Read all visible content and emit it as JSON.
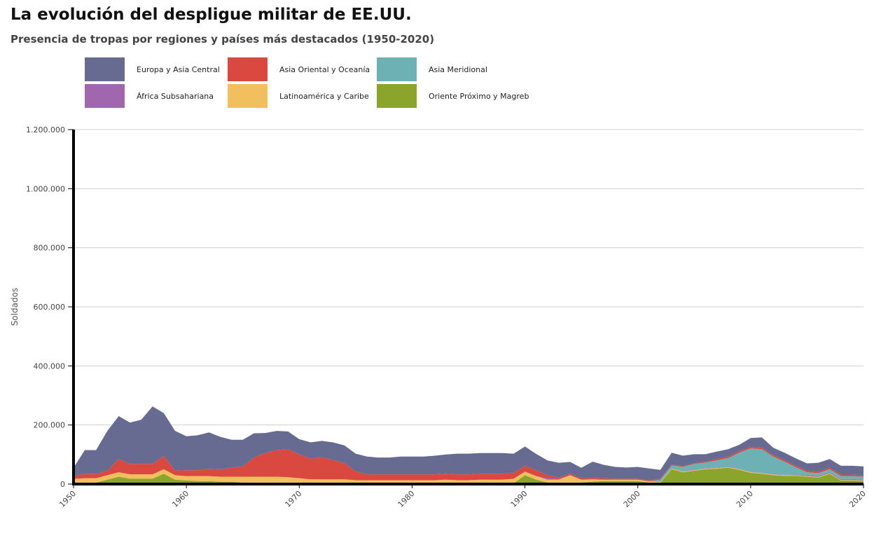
{
  "title": "La evolución del despligue militar de EE.UU.",
  "subtitle": "Presencia de tropas por regiones y países más destacados (1950-2020)",
  "legend": [
    {
      "label": "Europa y Asia Central",
      "color": "#676b92"
    },
    {
      "label": "Asia Oriental y Oceanía",
      "color": "#d9493f"
    },
    {
      "label": "Asia Meridional",
      "color": "#6eb1b5"
    },
    {
      "label": "África Subsahariana",
      "color": "#a066ae"
    },
    {
      "label": "Latinoamérica y Caribe",
      "color": "#f2bf5e"
    },
    {
      "label": "Oriente Próximo y Magreb",
      "color": "#8ba42c"
    }
  ],
  "chart_data": {
    "type": "area",
    "stacked": true,
    "ylabel": "Soldados",
    "ylim": [
      0,
      1200000
    ],
    "yticks": [
      0,
      200000,
      400000,
      600000,
      800000,
      1000000,
      1200000
    ],
    "ytick_labels": [
      "0",
      "200.000",
      "400.000",
      "600.000",
      "800.000",
      "1.000.000",
      "1.200.000"
    ],
    "xlim": [
      1950,
      2020
    ],
    "xticks": [
      1950,
      1960,
      1970,
      1980,
      1990,
      2000,
      2010,
      2020
    ],
    "grid": true,
    "x": [
      1950,
      1951,
      1952,
      1953,
      1954,
      1955,
      1956,
      1957,
      1958,
      1959,
      1960,
      1961,
      1962,
      1963,
      1964,
      1965,
      1966,
      1967,
      1968,
      1969,
      1970,
      1971,
      1972,
      1973,
      1974,
      1975,
      1976,
      1977,
      1978,
      1979,
      1980,
      1981,
      1982,
      1983,
      1984,
      1985,
      1986,
      1987,
      1988,
      1989,
      1990,
      1991,
      1992,
      1993,
      1994,
      1995,
      1996,
      1997,
      1998,
      1999,
      2000,
      2001,
      2002,
      2003,
      2004,
      2005,
      2006,
      2007,
      2008,
      2009,
      2010,
      2011,
      2012,
      2013,
      2014,
      2015,
      2016,
      2017,
      2018,
      2019,
      2020
    ],
    "series": [
      {
        "name": "Oriente Próximo y Magreb",
        "color": "#8ba42c",
        "values": [
          2000,
          5000,
          5000,
          15000,
          25000,
          18000,
          18000,
          18000,
          35000,
          15000,
          12000,
          10000,
          10000,
          8000,
          8000,
          5000,
          5000,
          5000,
          5000,
          5000,
          5000,
          3000,
          3000,
          3000,
          3000,
          3000,
          3000,
          3000,
          3000,
          3000,
          3000,
          3000,
          3000,
          3000,
          3000,
          3000,
          3000,
          3000,
          3000,
          3000,
          30000,
          15000,
          5000,
          5000,
          5000,
          5000,
          8000,
          10000,
          10000,
          10000,
          10000,
          5000,
          5000,
          50000,
          40000,
          45000,
          50000,
          52000,
          55000,
          48000,
          38000,
          35000,
          30000,
          28000,
          28000,
          25000,
          22000,
          35000,
          12000,
          12000,
          10000
        ]
      },
      {
        "name": "Latinoamérica y Caribe",
        "color": "#f2bf5e",
        "values": [
          15000,
          15000,
          15000,
          15000,
          15000,
          15000,
          15000,
          15000,
          15000,
          15000,
          15000,
          17000,
          17000,
          17000,
          17000,
          20000,
          20000,
          20000,
          20000,
          18000,
          15000,
          13000,
          13000,
          13000,
          13000,
          10000,
          10000,
          10000,
          10000,
          10000,
          10000,
          10000,
          10000,
          12000,
          10000,
          10000,
          12000,
          12000,
          12000,
          15000,
          12000,
          12000,
          10000,
          10000,
          25000,
          10000,
          8000,
          5000,
          5000,
          5000,
          5000,
          3000,
          2000,
          2000,
          2000,
          2000,
          2000,
          2000,
          2000,
          2000,
          2000,
          2000,
          2000,
          2000,
          2000,
          2000,
          2000,
          2000,
          2000,
          2000,
          2000
        ]
      },
      {
        "name": "África Subsahariana",
        "color": "#a066ae",
        "values": [
          0,
          0,
          0,
          0,
          0,
          0,
          0,
          0,
          0,
          0,
          0,
          0,
          0,
          0,
          0,
          0,
          0,
          0,
          0,
          0,
          0,
          0,
          0,
          0,
          0,
          0,
          0,
          0,
          0,
          0,
          0,
          0,
          0,
          0,
          0,
          0,
          0,
          0,
          0,
          0,
          0,
          0,
          5000,
          2000,
          0,
          0,
          0,
          0,
          0,
          0,
          0,
          0,
          0,
          1000,
          1000,
          1000,
          1000,
          1000,
          1000,
          1000,
          1000,
          1000,
          1000,
          1000,
          2000,
          3000,
          3000,
          3000,
          3000,
          3000,
          3000
        ]
      },
      {
        "name": "Asia Meridional",
        "color": "#6eb1b5",
        "values": [
          0,
          0,
          0,
          0,
          0,
          0,
          0,
          0,
          0,
          0,
          0,
          0,
          0,
          0,
          0,
          0,
          0,
          0,
          0,
          0,
          0,
          0,
          0,
          0,
          0,
          0,
          0,
          0,
          0,
          0,
          0,
          0,
          0,
          0,
          0,
          0,
          0,
          0,
          0,
          0,
          0,
          0,
          0,
          0,
          0,
          0,
          0,
          0,
          0,
          0,
          0,
          2000,
          8000,
          10000,
          15000,
          20000,
          20000,
          25000,
          30000,
          55000,
          80000,
          80000,
          60000,
          45000,
          25000,
          10000,
          10000,
          10000,
          10000,
          10000,
          10000
        ]
      },
      {
        "name": "Asia Oriental y Oceanía",
        "color": "#d9493f",
        "values": [
          10000,
          15000,
          15000,
          15000,
          45000,
          35000,
          35000,
          35000,
          45000,
          15000,
          20000,
          20000,
          25000,
          25000,
          30000,
          35000,
          65000,
          80000,
          90000,
          95000,
          80000,
          70000,
          75000,
          65000,
          55000,
          30000,
          20000,
          20000,
          20000,
          20000,
          20000,
          20000,
          20000,
          20000,
          20000,
          20000,
          20000,
          20000,
          20000,
          20000,
          20000,
          20000,
          10000,
          5000,
          5000,
          5000,
          5000,
          5000,
          3000,
          3000,
          3000,
          3000,
          3000,
          3000,
          3000,
          3000,
          3000,
          5000,
          5000,
          5000,
          5000,
          5000,
          5000,
          5000,
          5000,
          5000,
          5000,
          5000,
          5000,
          5000,
          5000
        ]
      },
      {
        "name": "Europa y Asia Central",
        "color": "#676b92",
        "values": [
          28000,
          80000,
          80000,
          135000,
          145000,
          140000,
          150000,
          195000,
          145000,
          135000,
          115000,
          118000,
          123000,
          110000,
          95000,
          90000,
          82000,
          68000,
          65000,
          60000,
          52000,
          55000,
          55000,
          60000,
          60000,
          60000,
          60000,
          57000,
          57000,
          60000,
          60000,
          60000,
          63000,
          65000,
          70000,
          70000,
          70000,
          70000,
          70000,
          65000,
          65000,
          55000,
          50000,
          50000,
          40000,
          35000,
          55000,
          45000,
          40000,
          38000,
          40000,
          40000,
          30000,
          40000,
          35000,
          30000,
          25000,
          25000,
          25000,
          22000,
          30000,
          35000,
          25000,
          25000,
          25000,
          25000,
          30000,
          30000,
          30000,
          30000,
          30000
        ]
      }
    ]
  }
}
